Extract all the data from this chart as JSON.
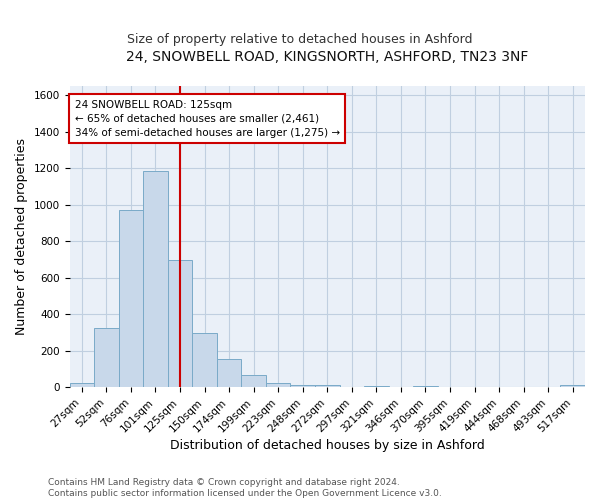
{
  "title1": "24, SNOWBELL ROAD, KINGSNORTH, ASHFORD, TN23 3NF",
  "title2": "Size of property relative to detached houses in Ashford",
  "xlabel": "Distribution of detached houses by size in Ashford",
  "ylabel": "Number of detached properties",
  "footnote": "Contains HM Land Registry data © Crown copyright and database right 2024.\nContains public sector information licensed under the Open Government Licence v3.0.",
  "bar_labels": [
    "27sqm",
    "52sqm",
    "76sqm",
    "101sqm",
    "125sqm",
    "150sqm",
    "174sqm",
    "199sqm",
    "223sqm",
    "248sqm",
    "272sqm",
    "297sqm",
    "321sqm",
    "346sqm",
    "370sqm",
    "395sqm",
    "419sqm",
    "444sqm",
    "468sqm",
    "493sqm",
    "517sqm"
  ],
  "bar_values": [
    25,
    325,
    970,
    1185,
    700,
    300,
    155,
    70,
    25,
    15,
    15,
    0,
    10,
    0,
    10,
    0,
    0,
    0,
    0,
    0,
    15
  ],
  "bar_color": "#c8d8ea",
  "bar_edgecolor": "#7aaac8",
  "vline_color": "#cc0000",
  "annotation_text": "24 SNOWBELL ROAD: 125sqm\n← 65% of detached houses are smaller (2,461)\n34% of semi-detached houses are larger (1,275) →",
  "annotation_box_facecolor": "#ffffff",
  "annotation_box_edgecolor": "#cc0000",
  "ylim": [
    0,
    1650
  ],
  "yticks": [
    0,
    200,
    400,
    600,
    800,
    1000,
    1200,
    1400,
    1600
  ],
  "bg_color": "#ffffff",
  "plot_bg_color": "#eaf0f8",
  "grid_color": "#c0cfe0",
  "title1_fontsize": 10,
  "title2_fontsize": 9,
  "axis_label_fontsize": 9,
  "tick_fontsize": 7.5,
  "footnote_fontsize": 6.5
}
